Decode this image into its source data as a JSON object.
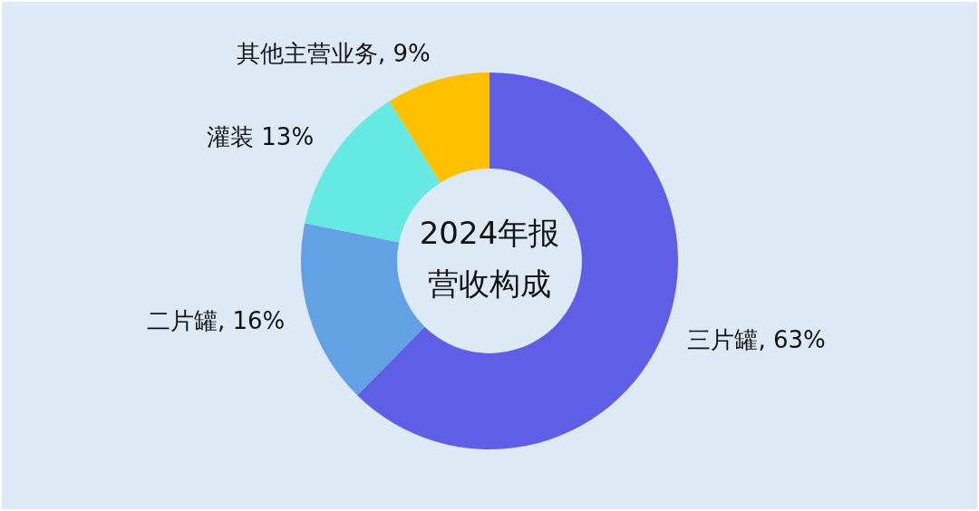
{
  "chart_data": {
    "type": "donut",
    "title": "2024年报营收构成",
    "categories": [
      "三片罐, 63%",
      "二片罐, 16%",
      "灌装 13%",
      "其他主营业务, 9%"
    ],
    "values": [
      63,
      16,
      13,
      9
    ],
    "colors": [
      "#5f5ee6",
      "#62a1e3",
      "#66e8e3",
      "#ffc000"
    ],
    "legend": false
  }
}
